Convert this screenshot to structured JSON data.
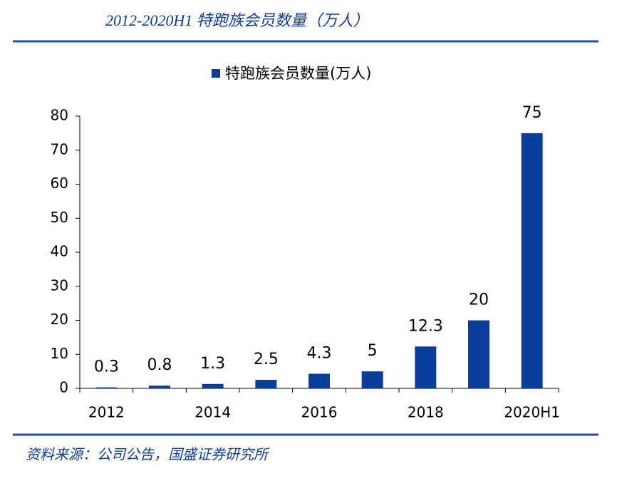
{
  "chart_data": {
    "type": "bar",
    "title": "2012-2020H1 特跑族会员数量（万人）",
    "categories": [
      "2012",
      null,
      "2014",
      null,
      "2016",
      null,
      "2018",
      null,
      "2020H1"
    ],
    "series": [
      {
        "name": "特跑族会员数量(万人)",
        "color": "#0b3d9c",
        "values": [
          0.3,
          0.8,
          1.3,
          2.5,
          4.3,
          5,
          12.3,
          20,
          75
        ]
      }
    ],
    "ylim": [
      0,
      80
    ],
    "yticks": [
      0,
      10,
      20,
      30,
      40,
      50,
      60,
      70,
      80
    ],
    "legend": "top",
    "source": "资料来源：公司公告，国盛证券研究所"
  }
}
